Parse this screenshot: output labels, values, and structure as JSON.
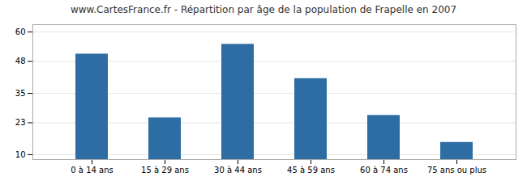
{
  "chart_data": {
    "type": "bar",
    "title": "www.CartesFrance.fr - Répartition par âge de la population de Frapelle en 2007",
    "categories": [
      "0 à 14 ans",
      "15 à 29 ans",
      "30 à 44 ans",
      "45 à 59 ans",
      "60 à 74 ans",
      "75 ans ou plus"
    ],
    "values": [
      51,
      25,
      55,
      41,
      26,
      15
    ],
    "color": "#2e6da4",
    "ylim": [
      8,
      63
    ],
    "yticks": [
      10,
      23,
      35,
      48,
      60
    ],
    "grid": true
  }
}
